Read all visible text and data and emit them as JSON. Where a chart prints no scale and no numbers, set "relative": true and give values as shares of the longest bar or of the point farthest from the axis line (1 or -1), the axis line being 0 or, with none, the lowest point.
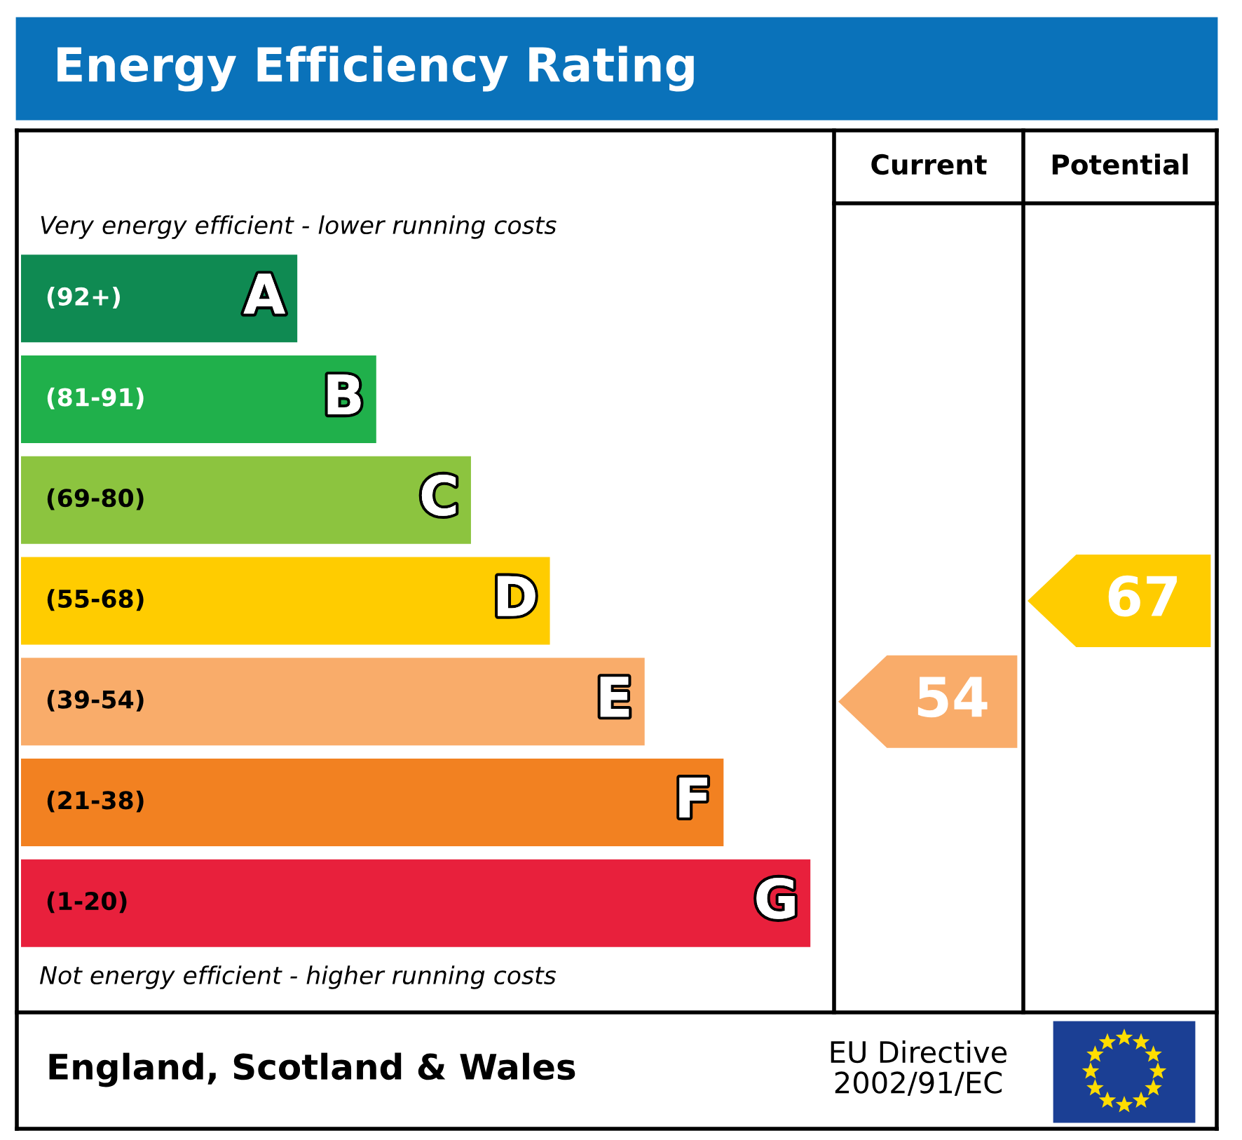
{
  "chart_data": {
    "type": "bar",
    "orientation": "horizontal",
    "relative": true,
    "title": "Energy Efficiency Rating",
    "categories": [
      "A",
      "B",
      "C",
      "D",
      "E",
      "F",
      "G"
    ],
    "values": [
      0.35,
      0.45,
      0.57,
      0.67,
      0.79,
      0.89,
      1.0
    ],
    "colors": [
      "#0f8a52",
      "#20b04b",
      "#8cc43f",
      "#ffcc00",
      "#f9ac6a",
      "#f28121",
      "#e8203c"
    ],
    "annotations": [
      "Very energy efficient - lower running costs",
      "Not energy efficient - higher running costs",
      "England, Scotland & Wales",
      "EU Directive\n2002/91/EC",
      "Current",
      "Potential",
      "54",
      "67",
      "(92+)",
      "(81-91)",
      "(69-80)",
      "(55-68)",
      "(39-54)",
      "(21-38)",
      "(1-20)"
    ]
  }
}
